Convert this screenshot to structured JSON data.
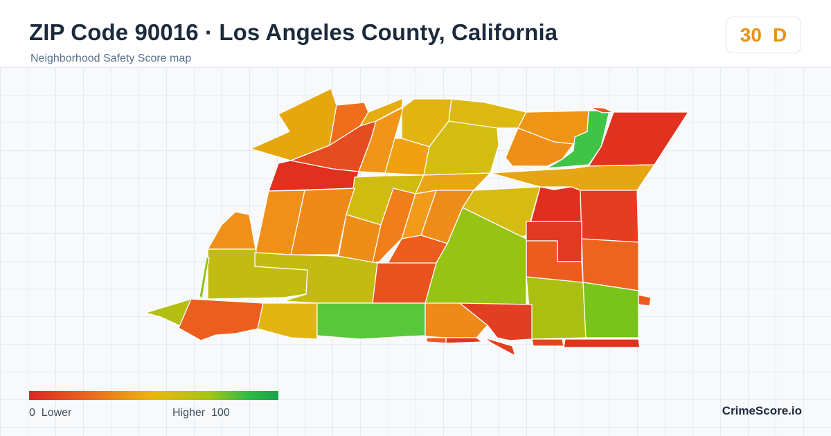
{
  "header": {
    "title": "ZIP Code 90016 · Los Angeles County, California",
    "subtitle": "Neighborhood Safety Score map"
  },
  "score": {
    "value": "30",
    "grade": "D",
    "color": "#eb9112"
  },
  "legend": {
    "min_value": "0",
    "min_label": "Lower",
    "max_label": "Higher",
    "max_value": "100",
    "colors": [
      "#dc2626",
      "#ea6a1e",
      "#e8b80e",
      "#a6c414",
      "#2fbb45",
      "#16a34a"
    ]
  },
  "brand": "CrimeScore.io"
}
